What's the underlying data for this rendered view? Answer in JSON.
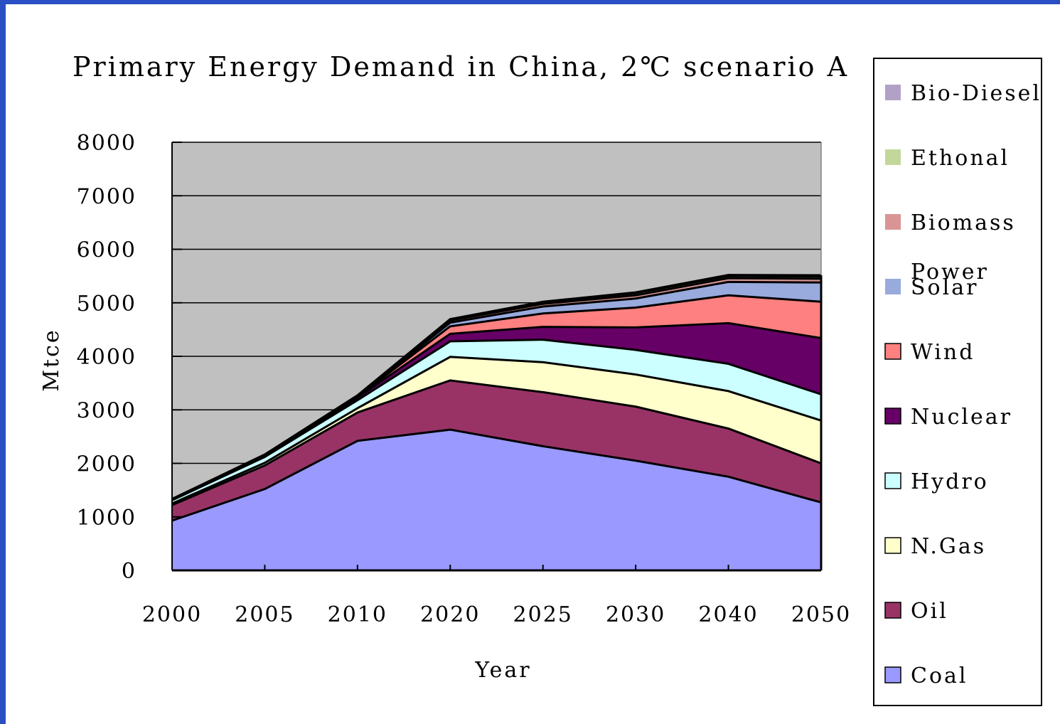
{
  "chart_data": {
    "type": "area",
    "stacked": true,
    "title": "Primary Energy Demand in China, 2℃ scenario A",
    "xlabel": "Year",
    "ylabel": "Mtce",
    "ylim": [
      0,
      8000
    ],
    "yticks": [
      0,
      1000,
      2000,
      3000,
      4000,
      5000,
      6000,
      7000,
      8000
    ],
    "categories": [
      "2000",
      "2005",
      "2010",
      "2020",
      "2025",
      "2030",
      "2040",
      "2050"
    ],
    "plot_background": "#c0c0c0",
    "grid": true,
    "legend_position": "right",
    "series": [
      {
        "name": "Coal",
        "color": "#9999ff",
        "values": [
          930,
          1520,
          2420,
          2630,
          2320,
          2050,
          1750,
          1270
        ]
      },
      {
        "name": "Oil",
        "color": "#993366",
        "values": [
          290,
          440,
          530,
          920,
          1010,
          1010,
          900,
          730
        ]
      },
      {
        "name": "N.Gas",
        "color": "#ffffcc",
        "values": [
          30,
          50,
          80,
          440,
          560,
          600,
          700,
          800
        ]
      },
      {
        "name": "Hydro",
        "color": "#ccffff",
        "values": [
          60,
          110,
          150,
          290,
          420,
          460,
          510,
          490
        ]
      },
      {
        "name": "Nuclear",
        "color": "#660066",
        "values": [
          10,
          20,
          50,
          140,
          240,
          420,
          760,
          1050
        ]
      },
      {
        "name": "Wind",
        "color": "#ff8080",
        "values": [
          2,
          5,
          10,
          140,
          250,
          370,
          520,
          680
        ]
      },
      {
        "name": "Solar",
        "color": "#99aadd",
        "values": [
          1,
          2,
          3,
          70,
          130,
          170,
          250,
          360
        ]
      },
      {
        "name": "Biomass Power",
        "color": "#d99594",
        "values": [
          10,
          15,
          20,
          40,
          50,
          60,
          70,
          70
        ]
      },
      {
        "name": "Ethonal",
        "color": "#c4d79b",
        "values": [
          1,
          2,
          5,
          20,
          30,
          40,
          40,
          40
        ]
      },
      {
        "name": "Bio-Diesel",
        "color": "#b2a1c7",
        "values": [
          0,
          0,
          2,
          5,
          10,
          15,
          20,
          25
        ]
      }
    ],
    "legend": [
      "Bio-Diesel",
      "Ethonal",
      "Biomass Power",
      "Solar",
      "Wind",
      "Nuclear",
      "Hydro",
      "N.Gas",
      "Oil",
      "Coal"
    ]
  }
}
